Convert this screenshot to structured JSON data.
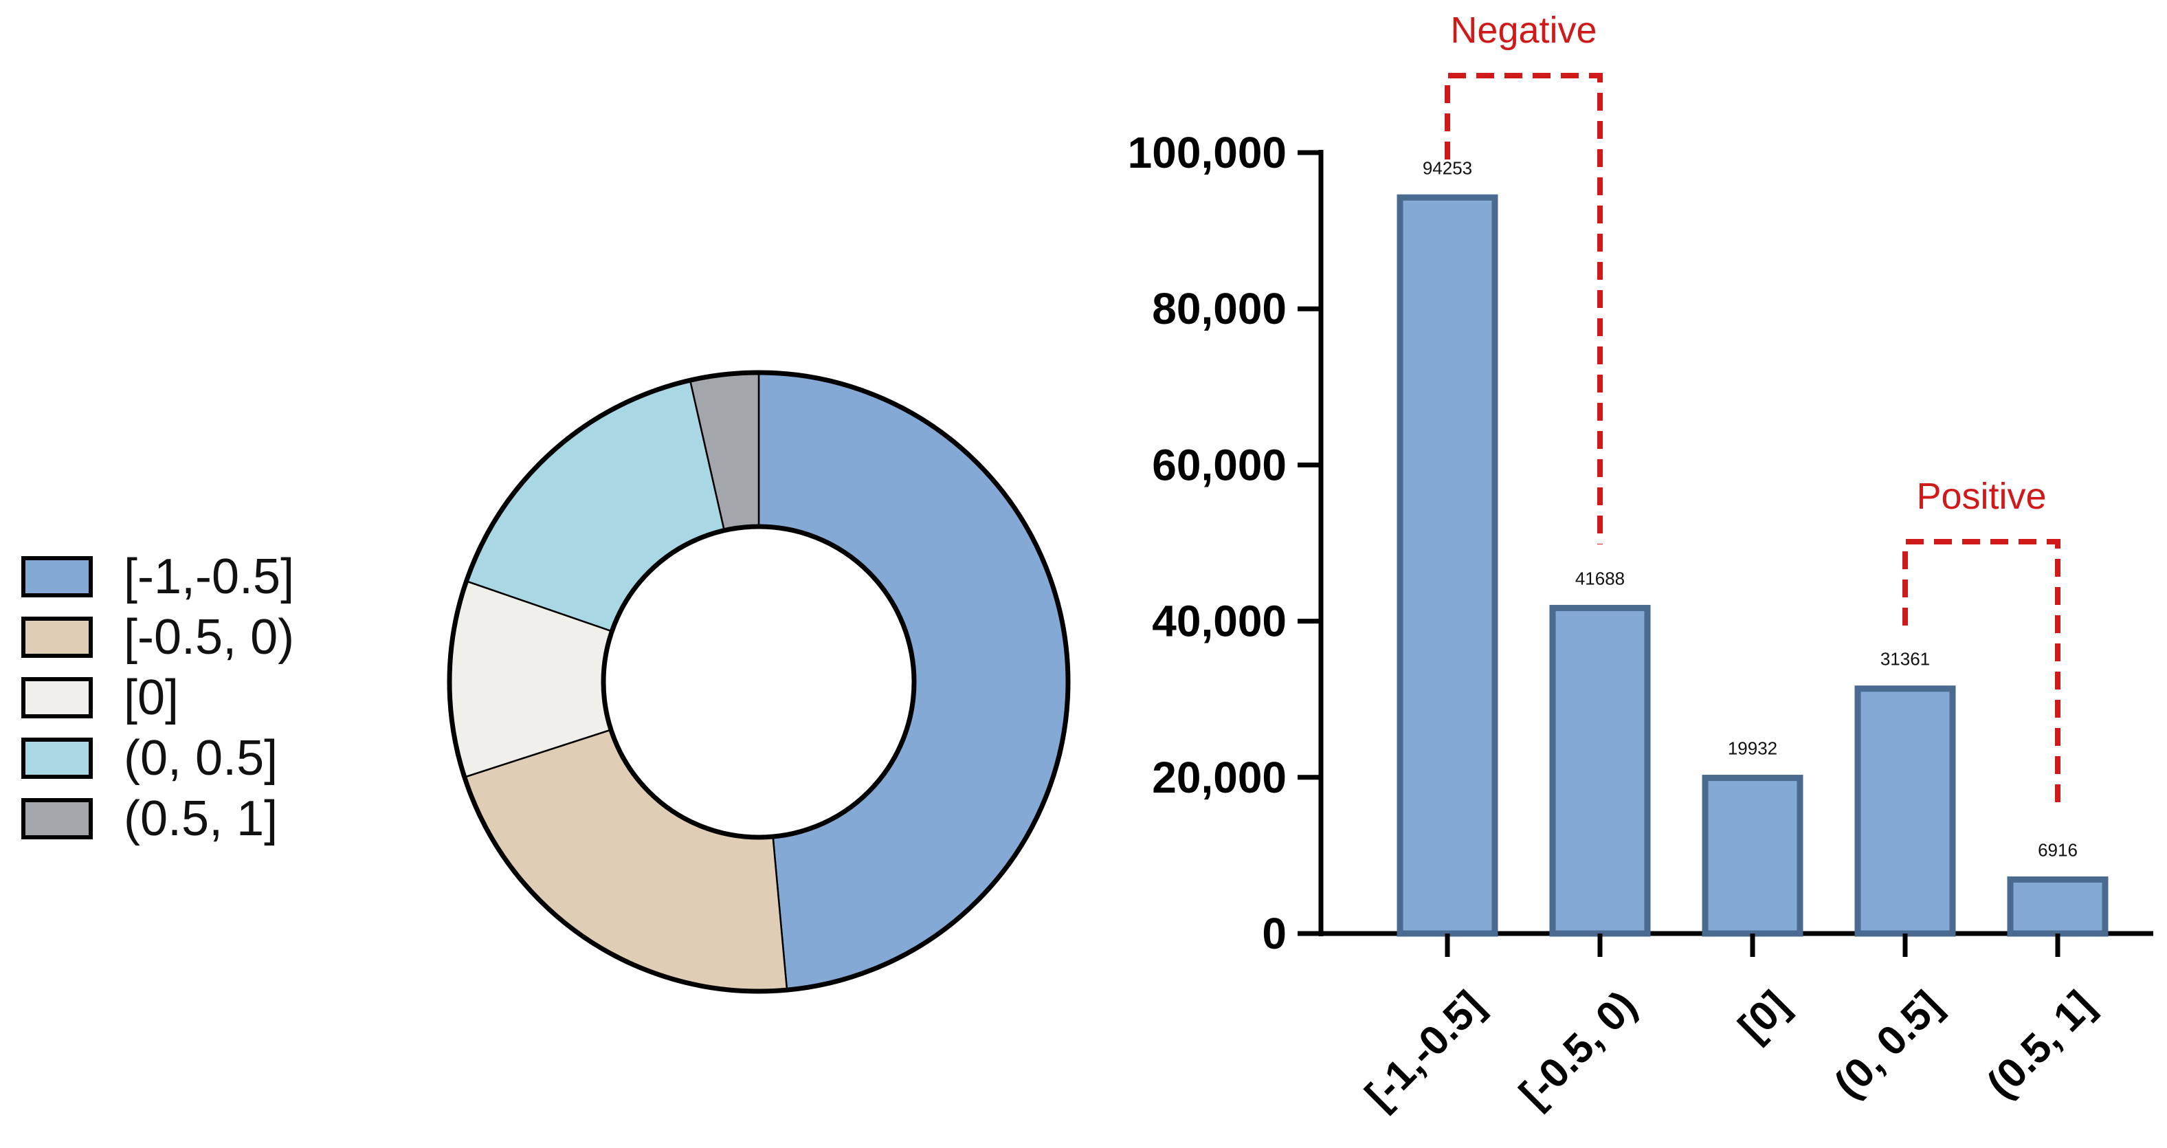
{
  "chart_data": [
    {
      "type": "pie",
      "donut": true,
      "legend_position": "left",
      "categories": [
        "[-1,-0.5]",
        "[-0.5, 0)",
        "[0]",
        "(0, 0.5]",
        "(0.5, 1]"
      ],
      "values": [
        94253,
        41688,
        19932,
        31361,
        6916
      ],
      "colors": [
        "#84a9d4",
        "#dfceb5",
        "#f1efea",
        "#a9d7e4",
        "#a3a6aa"
      ]
    },
    {
      "type": "bar",
      "categories": [
        "[-1,-0.5]",
        "[-0.5, 0)",
        "[0]",
        "(0, 0.5]",
        "(0.5, 1]"
      ],
      "values": [
        94253,
        41688,
        19932,
        31361,
        6916
      ],
      "data_labels": [
        "94253",
        "41688",
        "19932",
        "31361",
        "6916"
      ],
      "ylim": [
        0,
        100000
      ],
      "yticks": [
        0,
        20000,
        40000,
        60000,
        80000,
        100000
      ],
      "ytick_labels": [
        "0",
        "20,000",
        "40,000",
        "60,000",
        "80,000",
        "100,000"
      ],
      "bar_color": "#84a9d4",
      "bar_edge_color": "#4a6a90",
      "grid": false,
      "annotations": [
        {
          "text": "Negative",
          "from_category": 0,
          "to_category": 1,
          "color": "#d01a1a"
        },
        {
          "text": "Positive",
          "from_category": 3,
          "to_category": 4,
          "color": "#d01a1a"
        }
      ]
    }
  ]
}
